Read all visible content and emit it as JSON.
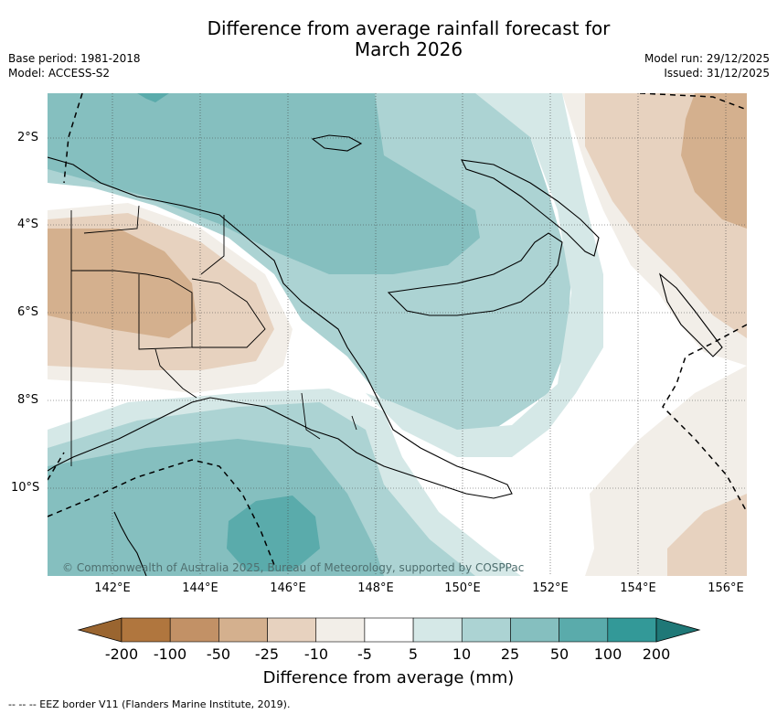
{
  "title_line1": "Difference from average rainfall forecast for",
  "title_line2": "March 2026",
  "meta": {
    "base_period": "Base period: 1981-2018",
    "model": "Model: ACCESS-S2",
    "model_run": "Model run: 29/12/2025",
    "issued": "Issued: 31/12/2025"
  },
  "map": {
    "lat_labels": [
      "2°S",
      "4°S",
      "6°S",
      "8°S",
      "10°S"
    ],
    "lon_labels": [
      "142°E",
      "144°E",
      "146°E",
      "148°E",
      "150°E",
      "152°E",
      "154°E",
      "156°E"
    ],
    "copyright": "© Commonwealth of Australia 2025, Bureau of Meteorology, supported by COSPPac"
  },
  "legend": {
    "tick_labels": [
      "-200",
      "-100",
      "-50",
      "-25",
      "-10",
      "-5",
      "5",
      "10",
      "25",
      "50",
      "100",
      "200"
    ],
    "title": "Difference from average (mm)",
    "colors": [
      "#9a6530",
      "#b0763e",
      "#c29166",
      "#d4b08e",
      "#e7d2bf",
      "#f2eee8",
      "#ffffff",
      "#d5e8e7",
      "#acd3d3",
      "#85bfbf",
      "#5aabab",
      "#339998",
      "#1f7877"
    ]
  },
  "eez_note": "--  --  -- EEZ border V11 (Flanders Marine Institute, 2019)."
}
